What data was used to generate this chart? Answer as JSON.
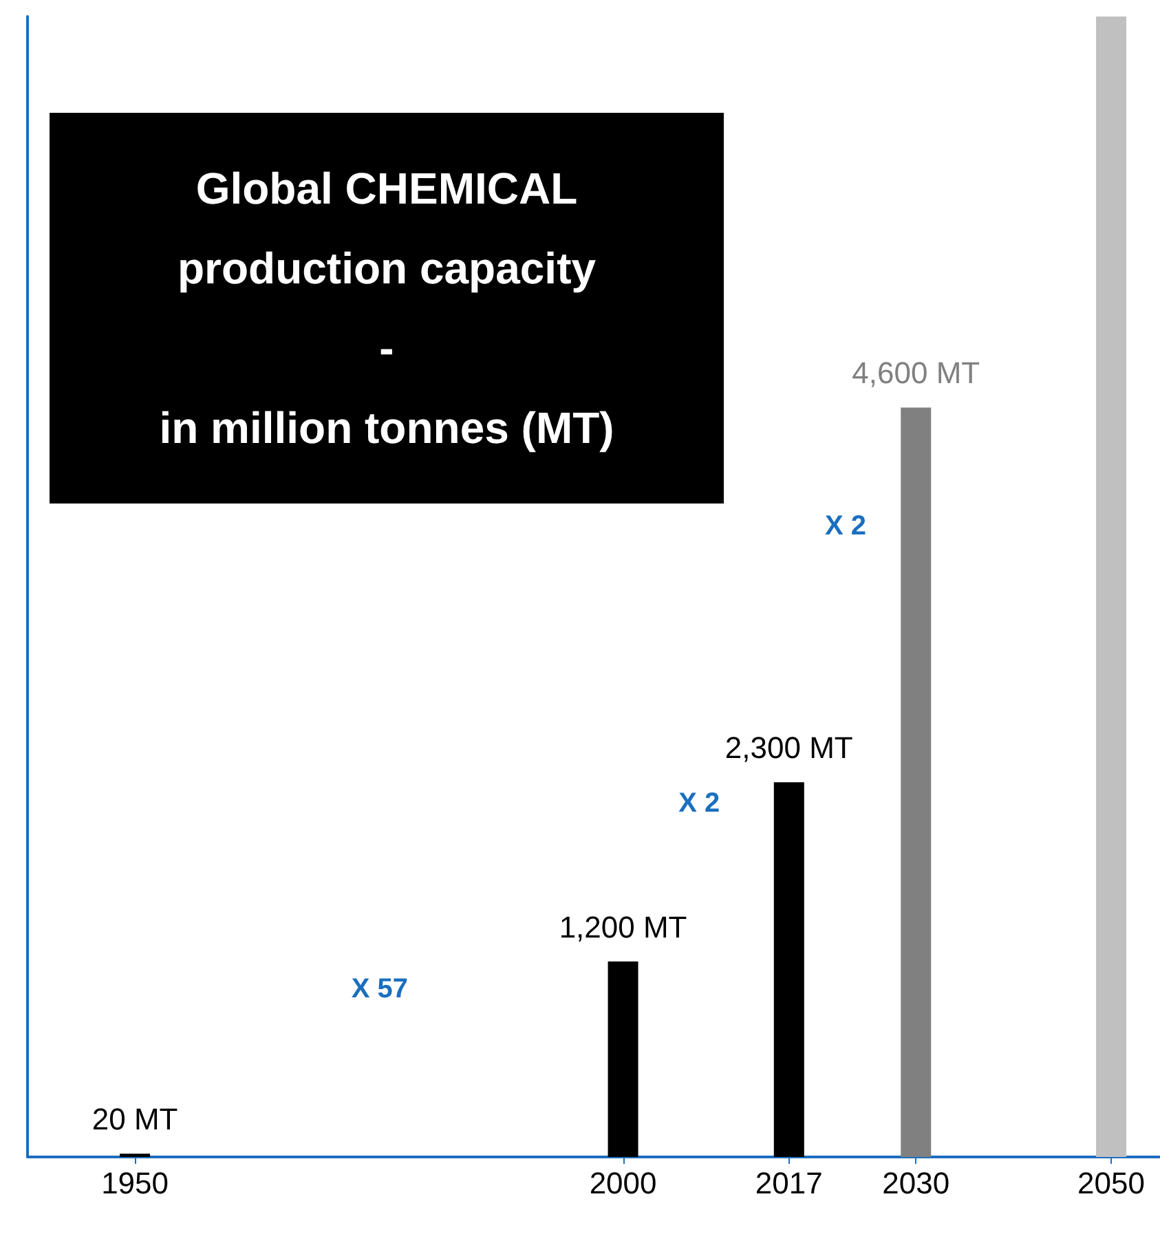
{
  "chart_data": {
    "type": "bar",
    "title": "Global CHEMICAL\nproduction capacity\n-\nin million tonnes (MT)",
    "x": [
      1950,
      2000,
      2017,
      2030,
      2050
    ],
    "values": [
      20,
      1200,
      2300,
      4600,
      7000
    ],
    "colors": [
      "#000000",
      "#000000",
      "#000000",
      "#808080",
      "#c0c0c0"
    ],
    "value_labels": [
      "20 MT",
      "1,200 MT",
      "2,300 MT",
      "4,600 MT",
      null
    ],
    "xlim": [
      1939,
      2055
    ],
    "xticks": [
      1950,
      2000,
      2017,
      2030,
      2050
    ],
    "ylim": [
      0,
      7000
    ],
    "tick_labels": "x",
    "annotations": [
      "X 57",
      "X 2",
      "X 2"
    ]
  }
}
